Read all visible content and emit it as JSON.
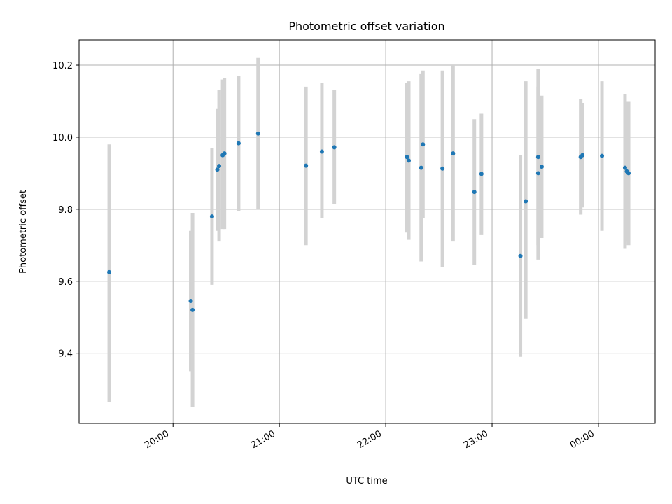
{
  "chart_data": {
    "type": "scatter",
    "title": "Photometric offset variation",
    "xlabel": "UTC time",
    "ylabel": "Photometric offset",
    "x_unit": "minutes",
    "x_start": "19:00",
    "xlim": [
      "19:07",
      "24:32"
    ],
    "ylim": [
      9.205,
      10.27
    ],
    "x_ticks": [
      {
        "label": "20:00"
      },
      {
        "label": "21:00"
      },
      {
        "label": "22:00"
      },
      {
        "label": "23:00"
      },
      {
        "label": "00:00"
      }
    ],
    "y_ticks": [
      {
        "label": "9.4",
        "value": 9.4
      },
      {
        "label": "9.6",
        "value": 9.6
      },
      {
        "label": "9.8",
        "value": 9.8
      },
      {
        "label": "10.0",
        "value": 10.0
      },
      {
        "label": "10.2",
        "value": 10.2
      }
    ],
    "grid": true,
    "marker_color": "#1f77b4",
    "errorbar_color": "#d3d3d3",
    "points": [
      {
        "t": "19:24",
        "y": 9.625,
        "lo": 9.265,
        "hi": 9.98
      },
      {
        "t": "20:10",
        "y": 9.545,
        "lo": 9.35,
        "hi": 9.74
      },
      {
        "t": "20:11",
        "y": 9.52,
        "lo": 9.25,
        "hi": 9.79
      },
      {
        "t": "20:22",
        "y": 9.78,
        "lo": 9.59,
        "hi": 9.97
      },
      {
        "t": "20:25",
        "y": 9.91,
        "lo": 9.74,
        "hi": 10.08
      },
      {
        "t": "20:26",
        "y": 9.92,
        "lo": 9.71,
        "hi": 10.13
      },
      {
        "t": "20:28",
        "y": 9.95,
        "lo": 9.745,
        "hi": 10.16
      },
      {
        "t": "20:29",
        "y": 9.955,
        "lo": 9.745,
        "hi": 10.165
      },
      {
        "t": "20:37",
        "y": 9.983,
        "lo": 9.795,
        "hi": 10.17
      },
      {
        "t": "20:48",
        "y": 10.01,
        "lo": 9.8,
        "hi": 10.22
      },
      {
        "t": "21:15",
        "y": 9.921,
        "lo": 9.7,
        "hi": 10.14
      },
      {
        "t": "21:24",
        "y": 9.96,
        "lo": 9.775,
        "hi": 10.15
      },
      {
        "t": "21:31",
        "y": 9.972,
        "lo": 9.815,
        "hi": 10.13
      },
      {
        "t": "22:12",
        "y": 9.945,
        "lo": 9.735,
        "hi": 10.15
      },
      {
        "t": "22:13",
        "y": 9.935,
        "lo": 9.715,
        "hi": 10.155
      },
      {
        "t": "22:20",
        "y": 9.915,
        "lo": 9.655,
        "hi": 10.175
      },
      {
        "t": "22:21",
        "y": 9.98,
        "lo": 9.775,
        "hi": 10.185
      },
      {
        "t": "22:32",
        "y": 9.913,
        "lo": 9.64,
        "hi": 10.185
      },
      {
        "t": "22:38",
        "y": 9.955,
        "lo": 9.71,
        "hi": 10.2
      },
      {
        "t": "22:50",
        "y": 9.848,
        "lo": 9.645,
        "hi": 10.05
      },
      {
        "t": "22:54",
        "y": 9.898,
        "lo": 9.73,
        "hi": 10.065
      },
      {
        "t": "23:16",
        "y": 9.67,
        "lo": 9.39,
        "hi": 9.95
      },
      {
        "t": "23:19",
        "y": 9.822,
        "lo": 9.495,
        "hi": 10.155
      },
      {
        "t": "23:26",
        "y": 9.9,
        "lo": 9.66,
        "hi": 10.14
      },
      {
        "t": "23:26",
        "y": 9.945,
        "lo": 9.7,
        "hi": 10.19
      },
      {
        "t": "23:28",
        "y": 9.918,
        "lo": 9.72,
        "hi": 10.115
      },
      {
        "t": "23:50",
        "y": 9.945,
        "lo": 9.785,
        "hi": 10.105
      },
      {
        "t": "23:51",
        "y": 9.95,
        "lo": 9.805,
        "hi": 10.095
      },
      {
        "t": "24:02",
        "y": 9.948,
        "lo": 9.74,
        "hi": 10.155
      },
      {
        "t": "24:15",
        "y": 9.915,
        "lo": 9.69,
        "hi": 10.12
      },
      {
        "t": "24:16",
        "y": 9.905,
        "lo": 9.71,
        "hi": 10.1
      },
      {
        "t": "24:17",
        "y": 9.9,
        "lo": 9.7,
        "hi": 10.1
      }
    ]
  }
}
